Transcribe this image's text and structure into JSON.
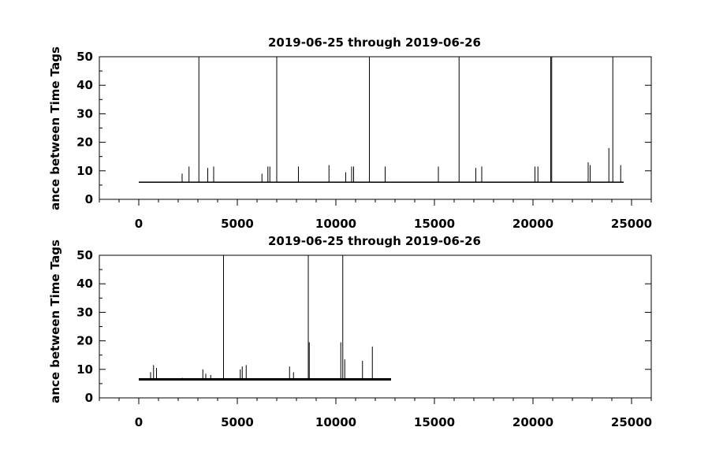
{
  "chart_data": [
    {
      "type": "line",
      "title": "2019-06-25 through 2019-06-26",
      "ylabel": "ance between Time Tags",
      "xlabel": "",
      "xlim": [
        -2000,
        26000
      ],
      "ylim": [
        0,
        50
      ],
      "x_ticks": [
        0,
        5000,
        10000,
        15000,
        20000,
        25000
      ],
      "x_tick_labels": [
        "0",
        "5000",
        "10000",
        "15000",
        "20000",
        "25000"
      ],
      "y_ticks": [
        0,
        10,
        20,
        30,
        40,
        50
      ],
      "y_tick_labels": [
        "0",
        "10",
        "20",
        "30",
        "40",
        "50"
      ],
      "grid": false,
      "series": [
        {
          "baseline": {
            "x": [
              0,
              24600
            ],
            "y": 6
          },
          "spikes": [
            {
              "x": 2200,
              "y": 9
            },
            {
              "x": 2550,
              "y": 11.5
            },
            {
              "x": 3050,
              "y": 50
            },
            {
              "x": 3500,
              "y": 11
            },
            {
              "x": 3800,
              "y": 11.5
            },
            {
              "x": 6250,
              "y": 9
            },
            {
              "x": 6550,
              "y": 11.5
            },
            {
              "x": 6650,
              "y": 11.5
            },
            {
              "x": 7000,
              "y": 50
            },
            {
              "x": 8100,
              "y": 11.5
            },
            {
              "x": 9650,
              "y": 12
            },
            {
              "x": 10500,
              "y": 9.5
            },
            {
              "x": 10800,
              "y": 11.5
            },
            {
              "x": 10900,
              "y": 11.5
            },
            {
              "x": 11700,
              "y": 50
            },
            {
              "x": 12500,
              "y": 11.5
            },
            {
              "x": 15200,
              "y": 11.5
            },
            {
              "x": 16250,
              "y": 50
            },
            {
              "x": 17100,
              "y": 11
            },
            {
              "x": 17400,
              "y": 11.5
            },
            {
              "x": 20100,
              "y": 11.5
            },
            {
              "x": 20250,
              "y": 11.5
            },
            {
              "x": 20900,
              "y": 50
            },
            {
              "x": 20950,
              "y": 50
            },
            {
              "x": 22800,
              "y": 13
            },
            {
              "x": 22900,
              "y": 12
            },
            {
              "x": 23850,
              "y": 18
            },
            {
              "x": 24050,
              "y": 50
            },
            {
              "x": 24450,
              "y": 12
            }
          ]
        }
      ]
    },
    {
      "type": "line",
      "title": "2019-06-25 through 2019-06-26",
      "ylabel": "ance between Time Tags",
      "xlabel": "",
      "xlim": [
        -2000,
        26000
      ],
      "ylim": [
        0,
        50
      ],
      "x_ticks": [
        0,
        5000,
        10000,
        15000,
        20000,
        25000
      ],
      "x_tick_labels": [
        "0",
        "5000",
        "10000",
        "15000",
        "20000",
        "25000"
      ],
      "y_ticks": [
        0,
        10,
        20,
        30,
        40,
        50
      ],
      "y_tick_labels": [
        "0",
        "10",
        "20",
        "30",
        "40",
        "50"
      ],
      "grid": false,
      "series": [
        {
          "baseline": {
            "x": [
              0,
              12800
            ],
            "y": 6.5
          },
          "spikes": [
            {
              "x": 600,
              "y": 9
            },
            {
              "x": 750,
              "y": 11.5
            },
            {
              "x": 900,
              "y": 10.5
            },
            {
              "x": 2200,
              "y": 7
            },
            {
              "x": 3250,
              "y": 10
            },
            {
              "x": 3400,
              "y": 8.5
            },
            {
              "x": 3650,
              "y": 8
            },
            {
              "x": 4300,
              "y": 50
            },
            {
              "x": 5150,
              "y": 10
            },
            {
              "x": 5250,
              "y": 11
            },
            {
              "x": 5450,
              "y": 11.5
            },
            {
              "x": 7650,
              "y": 11
            },
            {
              "x": 7850,
              "y": 9
            },
            {
              "x": 8600,
              "y": 50
            },
            {
              "x": 8650,
              "y": 19.5
            },
            {
              "x": 10250,
              "y": 19.5
            },
            {
              "x": 10350,
              "y": 50
            },
            {
              "x": 10450,
              "y": 13.5
            },
            {
              "x": 11350,
              "y": 13
            },
            {
              "x": 11850,
              "y": 18
            }
          ]
        }
      ]
    }
  ]
}
